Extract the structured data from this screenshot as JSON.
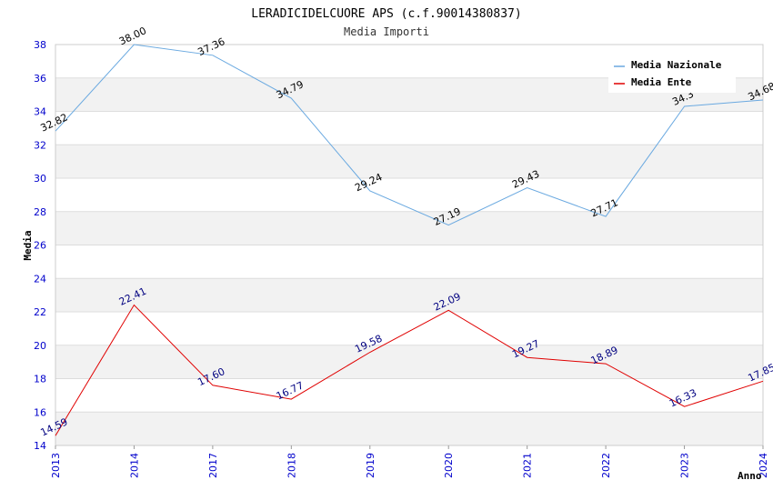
{
  "chart_data": {
    "type": "line",
    "title": "LERADICIDELCUORE APS (c.f.90014380837)",
    "subtitle": "Media Importi",
    "xlabel": "Anno",
    "ylabel": "Media",
    "ylim": [
      14,
      38
    ],
    "yticks": [
      14,
      16,
      18,
      20,
      22,
      24,
      26,
      28,
      30,
      32,
      34,
      36,
      38
    ],
    "categories": [
      "2013",
      "2014",
      "2017",
      "2018",
      "2019",
      "2020",
      "2021",
      "2022",
      "2023",
      "2024"
    ],
    "series": [
      {
        "name": "Media Nazionale",
        "color": "#6aa9e0",
        "label_color": "#000000",
        "values": [
          32.82,
          38.0,
          37.36,
          34.79,
          29.24,
          27.19,
          29.43,
          27.71,
          34.3,
          34.68
        ],
        "labels": [
          "32.82",
          "38.00",
          "37.36",
          "34.79",
          "29.24",
          "27.19",
          "29.43",
          "27.71",
          "34.3",
          "34.68"
        ]
      },
      {
        "name": "Media Ente",
        "color": "#e00000",
        "label_color": "#000080",
        "values": [
          14.59,
          22.41,
          17.6,
          16.77,
          19.58,
          22.09,
          19.27,
          18.89,
          16.33,
          17.85
        ],
        "labels": [
          "14.59",
          "22.41",
          "17.60",
          "16.77",
          "19.58",
          "22.09",
          "19.27",
          "18.89",
          "16.33",
          "17.85"
        ]
      }
    ],
    "grid": true,
    "legend_position": "top-right"
  }
}
